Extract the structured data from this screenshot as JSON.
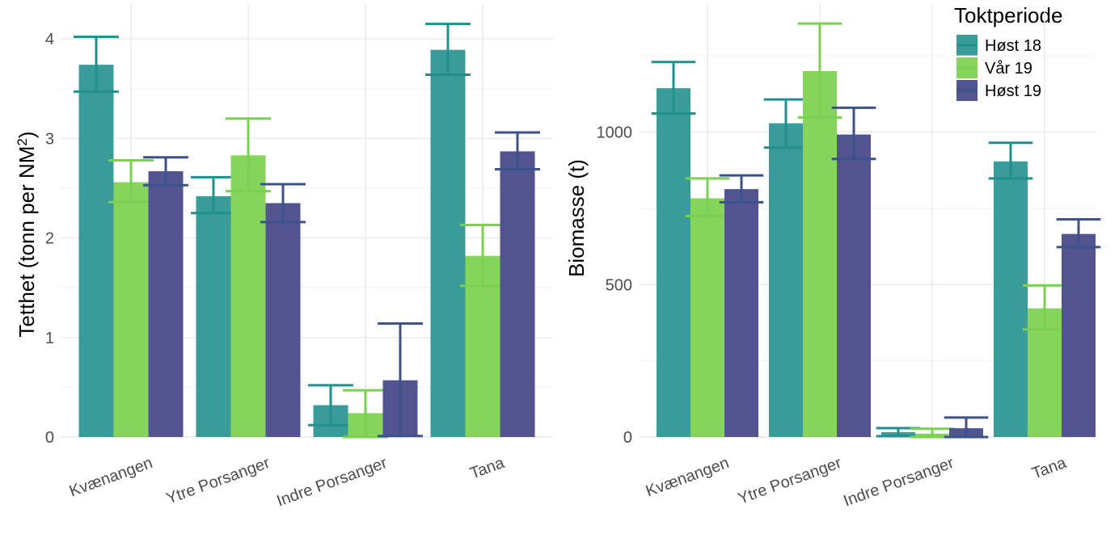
{
  "chart_data": [
    {
      "type": "bar",
      "ylabel": "Tetthet (tonn per NM²)",
      "ylabel_parts": {
        "main": "Tetthet (tonn per NM",
        "sup": "2",
        "end": ")"
      },
      "categories": [
        "Kvænangen",
        "Ytre Porsanger",
        "Indre Porsanger",
        "Tana"
      ],
      "ylim": [
        0,
        4.35
      ],
      "yticks": [
        0,
        1,
        2,
        3,
        4
      ],
      "grid": true,
      "series": [
        {
          "name": "Høst 18",
          "values": [
            3.74,
            2.42,
            0.32,
            3.89
          ],
          "lower": [
            3.47,
            2.25,
            0.12,
            3.64
          ],
          "upper": [
            4.02,
            2.61,
            0.52,
            4.15
          ]
        },
        {
          "name": "Vår 19",
          "values": [
            2.56,
            2.83,
            0.24,
            1.82
          ],
          "lower": [
            2.36,
            2.47,
            0.0,
            1.52
          ],
          "upper": [
            2.78,
            3.2,
            0.47,
            2.13
          ]
        },
        {
          "name": "Høst 19",
          "values": [
            2.67,
            2.35,
            0.57,
            2.87
          ],
          "lower": [
            2.53,
            2.16,
            0.01,
            2.69
          ],
          "upper": [
            2.81,
            2.54,
            1.14,
            3.06
          ]
        }
      ]
    },
    {
      "type": "bar",
      "ylabel": "Biomasse (t)",
      "categories": [
        "Kvænangen",
        "Ytre Porsanger",
        "Indre Porsanger",
        "Tana"
      ],
      "ylim": [
        0,
        1420
      ],
      "yticks": [
        0,
        500,
        1000
      ],
      "grid": true,
      "series": [
        {
          "name": "Høst 18",
          "values": [
            1144,
            1029,
            16,
            904
          ],
          "lower": [
            1061,
            949,
            3,
            848
          ],
          "upper": [
            1230,
            1107,
            29,
            965
          ]
        },
        {
          "name": "Vår 19",
          "values": [
            783,
            1200,
            11,
            422
          ],
          "lower": [
            725,
            1048,
            0,
            353
          ],
          "upper": [
            848,
            1356,
            27,
            497
          ]
        },
        {
          "name": "Høst 19",
          "values": [
            813,
            992,
            29,
            666
          ],
          "lower": [
            770,
            912,
            0,
            623
          ],
          "upper": [
            858,
            1080,
            64,
            714
          ]
        }
      ]
    }
  ],
  "legend": {
    "title": "Toktperiode",
    "placement": "top-right",
    "items": [
      "Høst 18",
      "Vår 19",
      "Høst 19"
    ]
  },
  "colors": {
    "fill": [
      "#3a9c98",
      "#86d45c",
      "#51548f"
    ],
    "error": [
      "#21908d",
      "#7ad151",
      "#3b528b"
    ]
  }
}
